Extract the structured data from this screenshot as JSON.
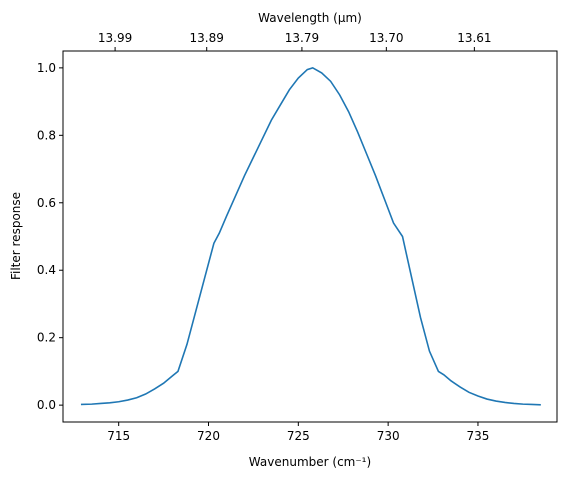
{
  "chart_data": {
    "type": "line",
    "xlabel": "Wavenumber (cm⁻¹)",
    "ylabel": "Filter response",
    "top_xlabel": "Wavelength (μm)",
    "xlim": [
      711.9,
      739.4
    ],
    "ylim": [
      -0.05,
      1.05
    ],
    "x_ticks": [
      715,
      720,
      725,
      730,
      735
    ],
    "x_tick_labels": [
      "715",
      "720",
      "725",
      "730",
      "735"
    ],
    "y_ticks": [
      0.0,
      0.2,
      0.4,
      0.6,
      0.8,
      1.0
    ],
    "y_tick_labels": [
      "0.0",
      "0.2",
      "0.4",
      "0.6",
      "0.8",
      "1.0"
    ],
    "top_ticks_wavenumber": [
      714.8,
      719.9,
      725.2,
      729.9,
      734.8
    ],
    "top_tick_labels": [
      "13.99",
      "13.89",
      "13.79",
      "13.70",
      "13.61"
    ],
    "grid": false,
    "line_color": "#1f77b4",
    "series": [
      {
        "x": [
          712.9,
          713.5,
          714.0,
          714.5,
          715.0,
          715.5,
          716.0,
          716.5,
          717.0,
          717.5,
          718.0,
          718.3,
          718.8,
          719.3,
          719.8,
          720.3,
          720.6,
          721.0,
          721.5,
          722.0,
          722.5,
          723.0,
          723.5,
          724.0,
          724.5,
          725.0,
          725.5,
          725.8,
          726.3,
          726.8,
          727.3,
          727.8,
          728.3,
          728.8,
          729.3,
          729.8,
          730.3,
          730.8,
          731.3,
          731.8,
          732.3,
          732.8,
          733.1,
          733.5,
          734.0,
          734.5,
          735.0,
          735.5,
          736.0,
          736.5,
          737.0,
          737.5,
          738.0,
          738.5
        ],
        "y": [
          0.002,
          0.003,
          0.005,
          0.007,
          0.01,
          0.015,
          0.022,
          0.033,
          0.048,
          0.065,
          0.087,
          0.1,
          0.18,
          0.28,
          0.38,
          0.48,
          0.51,
          0.56,
          0.62,
          0.68,
          0.735,
          0.79,
          0.845,
          0.89,
          0.935,
          0.97,
          0.995,
          1.0,
          0.985,
          0.96,
          0.92,
          0.87,
          0.81,
          0.745,
          0.68,
          0.61,
          0.54,
          0.5,
          0.38,
          0.26,
          0.16,
          0.1,
          0.09,
          0.072,
          0.054,
          0.038,
          0.027,
          0.018,
          0.012,
          0.008,
          0.005,
          0.003,
          0.002,
          0.001
        ]
      }
    ]
  }
}
